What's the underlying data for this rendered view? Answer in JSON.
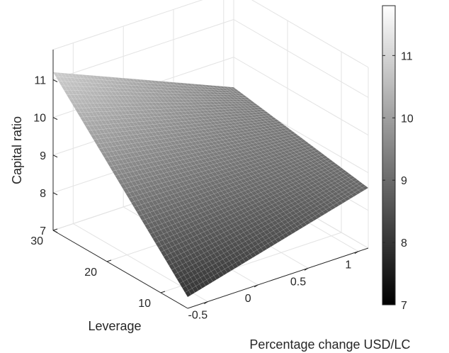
{
  "chart_data": {
    "type": "surface",
    "title": "",
    "xlabel": "Percentage change USD/LC",
    "ylabel": "Leverage",
    "zlabel": "Capital ratio",
    "x_ticks": [
      "-0.5",
      "0",
      "0.5",
      "1"
    ],
    "y_ticks": [
      "10",
      "20",
      "30"
    ],
    "z_ticks": [
      "7",
      "8",
      "9",
      "10",
      "11"
    ],
    "xlim": [
      -0.7,
      1.1
    ],
    "ylim": [
      5,
      30
    ],
    "zlim": [
      7,
      11.8
    ],
    "corners": [
      {
        "x": -0.7,
        "y": 30,
        "z": 11.2
      },
      {
        "x": -0.7,
        "y": 5,
        "z": 7.3
      },
      {
        "x": 1.1,
        "y": 5,
        "z": 8.6
      },
      {
        "x": 1.1,
        "y": 30,
        "z": 9.2
      }
    ],
    "colormap": "gray",
    "colorbar": {
      "ticks": [
        "7",
        "8",
        "9",
        "10",
        "11"
      ],
      "range": [
        7,
        11.8
      ]
    },
    "grid": true
  }
}
